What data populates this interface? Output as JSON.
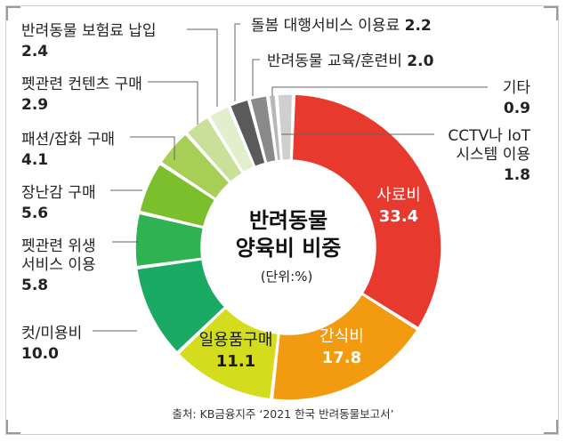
{
  "chart_data": {
    "type": "pie",
    "donut": true,
    "title": [
      "반려동물",
      "양육비 비중"
    ],
    "unit_note": "(단위:%)",
    "source": "출처: KB금융지주 ‘2021 한국 반려동물보고서’",
    "slices": [
      {
        "label": [
          "사료비"
        ],
        "value": "33.4",
        "color": "#e8392e",
        "placement": "inside"
      },
      {
        "label": [
          "간식비"
        ],
        "value": "17.8",
        "color": "#f29a10",
        "placement": "inside"
      },
      {
        "label": [
          "일용품구매"
        ],
        "value": "11.1",
        "color": "#d4dc1e",
        "placement": "inside"
      },
      {
        "label": [
          "컷/미용비"
        ],
        "value": "10.0",
        "color": "#1aaa64",
        "placement": "outside"
      },
      {
        "label": [
          "펫관련 위생",
          "서비스 이용"
        ],
        "value": "5.8",
        "color": "#2fb251",
        "placement": "outside"
      },
      {
        "label": [
          "장난감 구매"
        ],
        "value": "5.6",
        "color": "#7bbf2c",
        "placement": "outside"
      },
      {
        "label": [
          "패션/잡화 구매"
        ],
        "value": "4.1",
        "color": "#a8cf55",
        "placement": "outside"
      },
      {
        "label": [
          "펫관련 컨텐츠 구매"
        ],
        "value": "2.9",
        "color": "#c8e09a",
        "placement": "outside"
      },
      {
        "label": [
          "반려동물 보험료 납입"
        ],
        "value": "2.4",
        "color": "#e2efcc",
        "placement": "outside"
      },
      {
        "label": [
          "돌봄 대행서비스 이용료"
        ],
        "value": "2.2",
        "color": "#5a5a5a",
        "placement": "outside-inline"
      },
      {
        "label": [
          "반려동물 교육/훈련비"
        ],
        "value": "2.0",
        "color": "#8a8a8a",
        "placement": "outside-inline"
      },
      {
        "label": [
          "기타"
        ],
        "value": "0.9",
        "color": "#b8b8b8",
        "placement": "outside"
      },
      {
        "label": [
          "CCTV나 IoT",
          "시스템 이용"
        ],
        "value": "1.8",
        "color": "#cfcfcf",
        "placement": "outside"
      }
    ]
  }
}
